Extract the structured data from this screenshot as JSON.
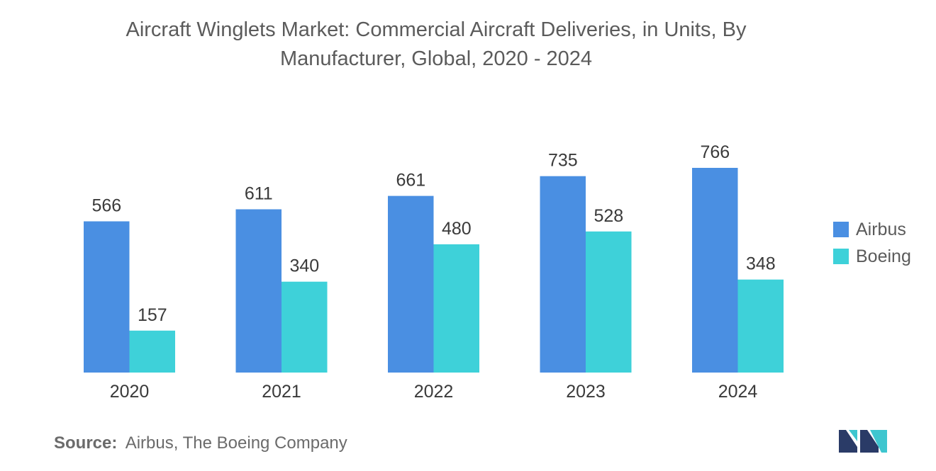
{
  "title": {
    "line1": "Aircraft Winglets Market: Commercial Aircraft Deliveries, in Units, By",
    "line2": "Manufacturer, Global, 2020 - 2024"
  },
  "chart_data": {
    "type": "bar",
    "title": "Aircraft Winglets Market: Commercial Aircraft Deliveries, in Units, By Manufacturer, Global, 2020 - 2024",
    "categories": [
      "2020",
      "2021",
      "2022",
      "2023",
      "2024"
    ],
    "series": [
      {
        "name": "Airbus",
        "values": [
          566,
          611,
          661,
          735,
          766
        ],
        "color": "#4a8fe2"
      },
      {
        "name": "Boeing",
        "values": [
          157,
          340,
          480,
          528,
          348
        ],
        "color": "#3ed1d9"
      }
    ],
    "xlabel": "",
    "ylabel": "",
    "ylim": [
      0,
      766
    ],
    "grid": false,
    "legend_position": "right"
  },
  "legend": {
    "items": [
      {
        "label": "Airbus",
        "color": "#4a8fe2"
      },
      {
        "label": "Boeing",
        "color": "#3ed1d9"
      }
    ]
  },
  "source": {
    "key": "Source:",
    "text": "Airbus, The Boeing Company"
  },
  "logo": {
    "icon": "mordor-intelligence-logo-icon",
    "color_dark": "#2a3b67",
    "color_light": "#3ec6cf"
  }
}
